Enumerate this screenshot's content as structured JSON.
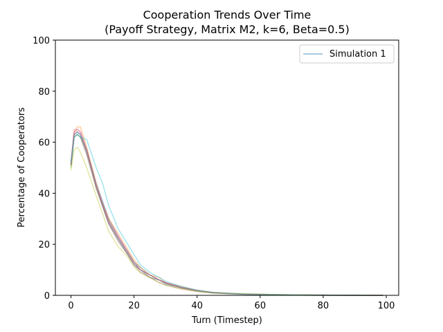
{
  "chart_data": {
    "type": "line",
    "title_line1": "Cooperation Trends Over Time",
    "title_line2": "(Payoff Strategy, Matrix M2, k=6, Beta=0.5)",
    "xlabel": "Turn (Timestep)",
    "ylabel": "Percentage of Cooperators",
    "xlim": [
      -4.95,
      103.95
    ],
    "ylim": [
      0,
      100
    ],
    "xticks": [
      0,
      20,
      40,
      60,
      80,
      100
    ],
    "yticks": [
      0,
      20,
      40,
      60,
      80,
      100
    ],
    "grid": false,
    "legend": {
      "position": "top-right",
      "entries": [
        "Simulation 1"
      ]
    },
    "line_alpha": 0.4,
    "series": [
      {
        "name": "Simulation 1",
        "color": "#1f77b4",
        "x": [
          0,
          1,
          2,
          3,
          5,
          8,
          10,
          12,
          15,
          18,
          20,
          22,
          25,
          28,
          30,
          35,
          40,
          45,
          50,
          55,
          60,
          65,
          70,
          80,
          90,
          99
        ],
        "y": [
          51,
          63,
          64,
          63,
          57,
          44,
          37,
          30,
          23,
          17,
          13,
          11,
          8,
          6,
          5,
          3,
          2,
          1,
          0.8,
          0.5,
          0.4,
          0.3,
          0.2,
          0.1,
          0.1,
          0
        ]
      },
      {
        "color": "#ff7f0e",
        "x": [
          0,
          1,
          2,
          3,
          5,
          8,
          10,
          12,
          15,
          18,
          20,
          22,
          25,
          28,
          30,
          35,
          40,
          45,
          50,
          55,
          60,
          65,
          70,
          80,
          90,
          99
        ],
        "y": [
          52,
          64,
          66,
          66,
          58,
          44,
          36,
          30,
          24,
          18,
          14,
          11,
          8,
          7,
          5,
          3.5,
          2,
          1.2,
          0.8,
          0.6,
          0.4,
          0.3,
          0.2,
          0.1,
          0,
          0
        ]
      },
      {
        "color": "#2ca02c",
        "x": [
          0,
          1,
          2,
          3,
          5,
          8,
          10,
          12,
          15,
          18,
          20,
          22,
          25,
          28,
          30,
          35,
          40,
          45,
          50,
          55,
          60,
          65,
          70,
          80,
          90,
          99
        ],
        "y": [
          50,
          62,
          63,
          62,
          56,
          42,
          35,
          28,
          22,
          16,
          12,
          10,
          7,
          6,
          4.5,
          3,
          1.8,
          1,
          0.7,
          0.5,
          0.3,
          0.2,
          0.1,
          0.1,
          0,
          0
        ]
      },
      {
        "color": "#d62728",
        "x": [
          0,
          1,
          2,
          3,
          5,
          8,
          10,
          12,
          15,
          18,
          20,
          22,
          25,
          28,
          30,
          35,
          40,
          45,
          50,
          55,
          60,
          65,
          70,
          80,
          90,
          99
        ],
        "y": [
          51,
          64,
          65,
          64,
          57,
          43,
          36,
          29,
          23,
          17,
          13,
          10,
          8,
          6,
          5,
          3,
          1.9,
          1.1,
          0.8,
          0.5,
          0.4,
          0.2,
          0.1,
          0.1,
          0,
          0
        ]
      },
      {
        "color": "#9467bd",
        "x": [
          0,
          1,
          2,
          3,
          5,
          8,
          10,
          12,
          15,
          18,
          20,
          22,
          25,
          28,
          30,
          35,
          40,
          45,
          50,
          55,
          60,
          65,
          70,
          80,
          90,
          99
        ],
        "y": [
          52,
          63,
          64,
          63,
          56,
          43,
          35,
          28,
          22,
          16,
          12,
          10,
          7,
          6,
          4.5,
          3,
          1.8,
          1,
          0.6,
          0.4,
          0.3,
          0.2,
          0.1,
          0,
          0,
          0
        ]
      },
      {
        "color": "#8c564b",
        "x": [
          0,
          1,
          2,
          3,
          5,
          8,
          10,
          12,
          15,
          18,
          20,
          22,
          25,
          28,
          30,
          35,
          40,
          45,
          50,
          55,
          60,
          65,
          70,
          80,
          90,
          99
        ],
        "y": [
          51,
          62,
          63,
          62,
          55,
          42,
          35,
          28,
          21,
          16,
          12,
          9,
          7,
          5,
          4,
          2.5,
          1.5,
          0.9,
          0.6,
          0.4,
          0.3,
          0.2,
          0.1,
          0,
          0,
          0
        ]
      },
      {
        "color": "#e377c2",
        "x": [
          0,
          1,
          2,
          3,
          5,
          8,
          10,
          12,
          15,
          18,
          20,
          22,
          25,
          28,
          30,
          35,
          40,
          45,
          50,
          55,
          60,
          65,
          70,
          80,
          90,
          99
        ],
        "y": [
          52,
          65,
          65,
          64,
          57,
          43,
          36,
          29,
          23,
          17,
          13,
          10,
          8,
          6,
          5,
          3.2,
          1.9,
          1.1,
          0.7,
          0.5,
          0.3,
          0.2,
          0.1,
          0.1,
          0,
          0
        ]
      },
      {
        "color": "#7f7f7f",
        "x": [
          0,
          1,
          2,
          3,
          5,
          8,
          10,
          12,
          15,
          18,
          20,
          22,
          25,
          28,
          30,
          35,
          40,
          45,
          50,
          55,
          60,
          65,
          70,
          80,
          90,
          99
        ],
        "y": [
          51,
          63,
          64,
          63,
          57,
          43,
          36,
          29,
          22,
          17,
          13,
          10,
          8,
          6,
          4.8,
          3,
          1.8,
          1,
          0.7,
          0.5,
          0.3,
          0.2,
          0.1,
          0,
          0,
          0
        ]
      },
      {
        "color": "#bcbd22",
        "x": [
          0,
          1,
          2,
          3,
          5,
          8,
          10,
          12,
          15,
          18,
          20,
          22,
          25,
          28,
          30,
          35,
          40,
          45,
          50,
          55,
          60,
          65,
          70,
          80,
          90,
          99
        ],
        "y": [
          49,
          57,
          58,
          56,
          50,
          39,
          32,
          25,
          19,
          15,
          11,
          9,
          7,
          5,
          4,
          2.6,
          1.6,
          0.9,
          0.7,
          0.6,
          0.5,
          0.3,
          0.2,
          0.1,
          0,
          0
        ]
      },
      {
        "color": "#17becf",
        "x": [
          0,
          1,
          2,
          3,
          5,
          8,
          10,
          12,
          15,
          18,
          20,
          22,
          25,
          28,
          30,
          35,
          40,
          45,
          50,
          55,
          60,
          65,
          70,
          80,
          90,
          99
        ],
        "y": [
          52,
          62,
          63,
          62,
          61,
          50,
          44,
          35,
          26,
          20,
          16,
          12,
          9,
          7,
          5.5,
          3.5,
          2,
          1.2,
          0.8,
          0.5,
          0.4,
          0.3,
          0.2,
          0.1,
          0.1,
          0
        ]
      }
    ]
  }
}
